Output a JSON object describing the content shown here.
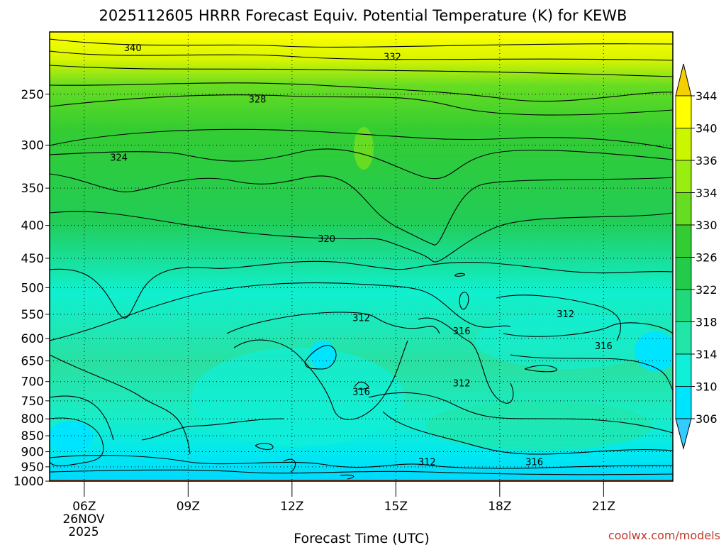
{
  "chart_data": {
    "type": "heatmap",
    "title": "2025112605 HRRR Forecast Equiv. Potential Temperature (K) for KEWB",
    "xlabel": "Forecast Time (UTC)",
    "credit": "coolwx.com/models",
    "x_tick_labels": [
      "06Z",
      "09Z",
      "12Z",
      "15Z",
      "18Z",
      "21Z"
    ],
    "x_hours": [
      6,
      9,
      12,
      15,
      18,
      21
    ],
    "x_range": [
      5,
      23
    ],
    "date_label_line1": "26NOV",
    "date_label_line2": "2025",
    "y_ticks": [
      "250",
      "300",
      "350",
      "400",
      "450",
      "500",
      "550",
      "600",
      "650",
      "700",
      "750",
      "800",
      "850",
      "900",
      "950",
      "1000"
    ],
    "y_values": [
      250,
      300,
      350,
      400,
      450,
      500,
      550,
      600,
      650,
      700,
      750,
      800,
      850,
      900,
      950,
      1000
    ],
    "y_range": [
      200,
      1000
    ],
    "y_scale": "log",
    "colorbar": {
      "ticks": [
        "306",
        "310",
        "314",
        "318",
        "322",
        "326",
        "330",
        "334",
        "336",
        "340",
        "344"
      ],
      "colors": [
        "#33ccff",
        "#00e5ff",
        "#10f0d8",
        "#22e6a8",
        "#1fd97a",
        "#22cc4a",
        "#33cc33",
        "#66dd22",
        "#99ee11",
        "#ccf500",
        "#ffff00",
        "#f5d000"
      ]
    },
    "contour_labels": [
      {
        "text": "340",
        "hour": 7.4,
        "p": 212
      },
      {
        "text": "332",
        "hour": 14.9,
        "p": 219
      },
      {
        "text": "328",
        "hour": 11.0,
        "p": 255
      },
      {
        "text": "324",
        "hour": 7.0,
        "p": 314
      },
      {
        "text": "320",
        "hour": 13.0,
        "p": 420
      },
      {
        "text": "312",
        "hour": 14.0,
        "p": 558
      },
      {
        "text": "316",
        "hour": 16.9,
        "p": 585
      },
      {
        "text": "312",
        "hour": 19.9,
        "p": 550
      },
      {
        "text": "316",
        "hour": 21.0,
        "p": 617
      },
      {
        "text": "312",
        "hour": 16.9,
        "p": 705
      },
      {
        "text": "316",
        "hour": 14.0,
        "p": 727
      },
      {
        "text": "312",
        "hour": 15.9,
        "p": 935
      },
      {
        "text": "316",
        "hour": 19.0,
        "p": 935
      }
    ]
  }
}
